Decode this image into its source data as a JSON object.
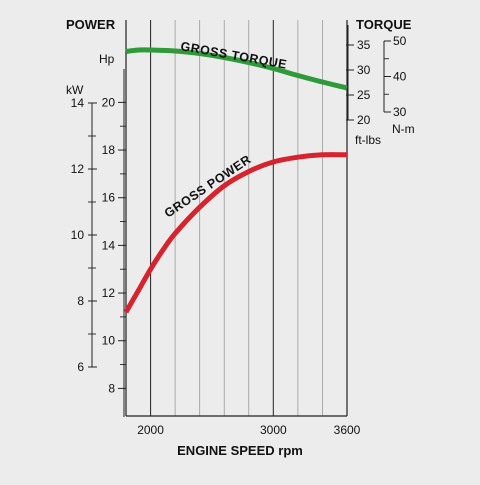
{
  "chart_data": {
    "type": "line",
    "xlabel": "ENGINE SPEED rpm",
    "x_ticks": [
      "2000",
      "3000",
      "3600"
    ],
    "xlim": [
      1800,
      3600
    ],
    "x_gridlines": [
      2000,
      2200,
      2400,
      2600,
      2800,
      3000,
      3200,
      3400
    ],
    "left_axis_title": "POWER",
    "right_axis_title": "TORQUE",
    "hp_axis": {
      "unit": "Hp",
      "ticks": [
        "8",
        "10",
        "12",
        "14",
        "16",
        "18",
        "20"
      ],
      "range": [
        6.8,
        21.4
      ]
    },
    "kw_axis": {
      "unit": "kW",
      "ticks": [
        "6",
        "8",
        "10",
        "12",
        "14"
      ],
      "range": [
        5.0,
        16.0
      ]
    },
    "ftlbs_axis": {
      "unit": "ft-lbs",
      "ticks": [
        "20",
        "25",
        "30",
        "35"
      ],
      "range": [
        20,
        39
      ]
    },
    "nm_axis": {
      "unit": "N-m",
      "ticks": [
        "30",
        "40",
        "50"
      ],
      "range": [
        30,
        50
      ]
    },
    "grid": true,
    "series": [
      {
        "name": "GROSS TORQUE",
        "axis": "ft-lbs",
        "color": "#2e9a3a",
        "x": [
          1800,
          1900,
          2000,
          2200,
          2400,
          2600,
          2800,
          3000,
          3200,
          3400,
          3600
        ],
        "values": [
          33.7,
          34.0,
          34.0,
          33.8,
          33.3,
          32.5,
          31.5,
          30.3,
          28.9,
          27.6,
          26.4
        ]
      },
      {
        "name": "GROSS POWER",
        "axis": "Hp",
        "color": "#d6232e",
        "x": [
          1800,
          1900,
          2000,
          2100,
          2200,
          2400,
          2600,
          2800,
          3000,
          3200,
          3400,
          3600
        ],
        "values": [
          11.2,
          12.1,
          13.0,
          13.8,
          14.5,
          15.6,
          16.5,
          17.1,
          17.5,
          17.7,
          17.8,
          17.8
        ]
      }
    ]
  }
}
